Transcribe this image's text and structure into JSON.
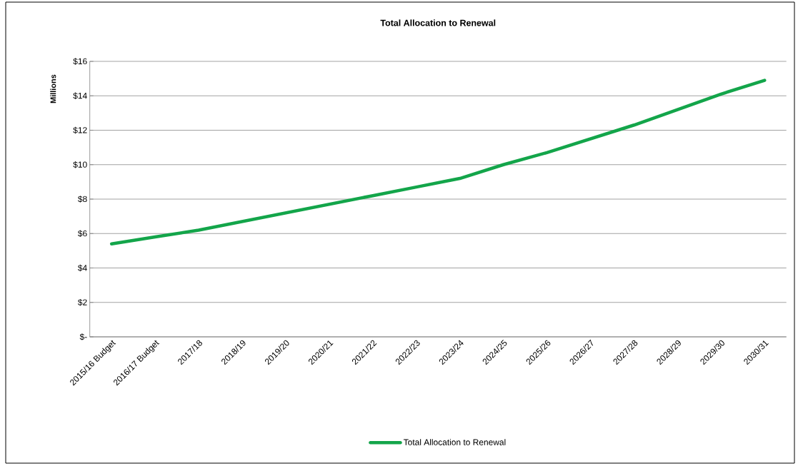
{
  "chart_data": {
    "type": "line",
    "title": "Total Allocation to Renewal",
    "ylabel": "Millions",
    "categories": [
      "2015/16 Budget",
      "2016/17 Budget",
      "2017/18",
      "2018/19",
      "2019/20",
      "2020/21",
      "2021/22",
      "2022/23",
      "2023/24",
      "2024/25",
      "2025/26",
      "2026/27",
      "2027/28",
      "2028/29",
      "2029/30",
      "2030/31"
    ],
    "series": [
      {
        "name": "Total Allocation to Renewal",
        "color": "#13a54a",
        "values": [
          5.4,
          5.8,
          6.2,
          6.7,
          7.2,
          7.7,
          8.2,
          8.7,
          9.2,
          10.0,
          10.7,
          11.5,
          12.3,
          13.2,
          14.1,
          14.9
        ]
      }
    ],
    "ylim": [
      0,
      16
    ],
    "yticks": [
      {
        "value": 0,
        "label": "$-"
      },
      {
        "value": 2,
        "label": "$2"
      },
      {
        "value": 4,
        "label": "$4"
      },
      {
        "value": 6,
        "label": "$6"
      },
      {
        "value": 8,
        "label": "$8"
      },
      {
        "value": 10,
        "label": "$10"
      },
      {
        "value": 12,
        "label": "$12"
      },
      {
        "value": 14,
        "label": "$14"
      },
      {
        "value": 16,
        "label": "$16"
      }
    ],
    "grid": "y",
    "legend": "bottom",
    "marker": "none",
    "line_style": "solid"
  }
}
